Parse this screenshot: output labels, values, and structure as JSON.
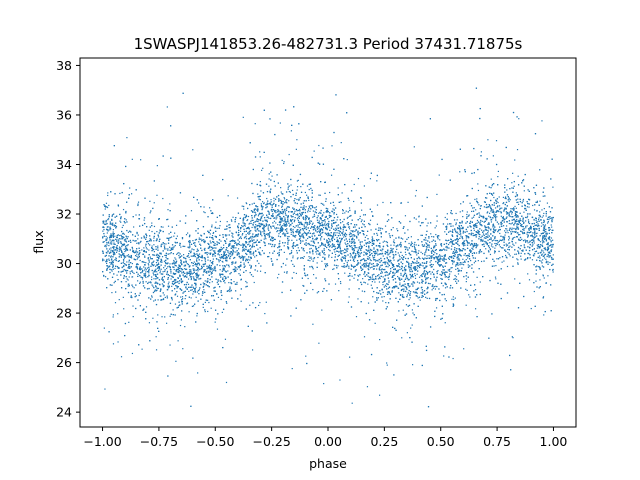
{
  "chart_data": {
    "type": "scatter",
    "title": "1SWASPJ141853.26-482731.3 Period 37431.71875s",
    "xlabel": "phase",
    "ylabel": "flux",
    "xlim": [
      -1.1,
      1.1
    ],
    "ylim": [
      23.4,
      38.3
    ],
    "x_ticks": [
      -1.0,
      -0.75,
      -0.5,
      -0.25,
      0.0,
      0.25,
      0.5,
      0.75,
      1.0
    ],
    "x_tick_labels": [
      "−1.00",
      "−0.75",
      "−0.50",
      "−0.25",
      "0.00",
      "0.25",
      "0.50",
      "0.75",
      "1.00"
    ],
    "y_ticks": [
      24,
      26,
      28,
      30,
      32,
      34,
      36,
      38
    ],
    "y_tick_labels": [
      "24",
      "26",
      "28",
      "30",
      "32",
      "34",
      "36",
      "38"
    ],
    "grid": false,
    "series": [
      {
        "color": "#1f77b4",
        "x_range": [
          -1.0,
          1.0
        ],
        "y_range": [
          24.0,
          37.4
        ],
        "mean_flux": 30.9,
        "amplitude": 1.05,
        "max_phase": [
          -0.2,
          0.8
        ],
        "min_phase": [
          -0.65,
          0.35
        ],
        "profile": [
          {
            "x": -1.0,
            "y": 30.8
          },
          {
            "x": -0.75,
            "y": 29.9
          },
          {
            "x": -0.65,
            "y": 29.7
          },
          {
            "x": -0.5,
            "y": 30.1
          },
          {
            "x": -0.25,
            "y": 31.6
          },
          {
            "x": -0.2,
            "y": 31.7
          },
          {
            "x": 0.0,
            "y": 31.1
          },
          {
            "x": 0.25,
            "y": 30.0
          },
          {
            "x": 0.35,
            "y": 29.7
          },
          {
            "x": 0.5,
            "y": 30.1
          },
          {
            "x": 0.75,
            "y": 31.6
          },
          {
            "x": 0.8,
            "y": 31.7
          },
          {
            "x": 1.0,
            "y": 31.0
          }
        ]
      }
    ]
  }
}
